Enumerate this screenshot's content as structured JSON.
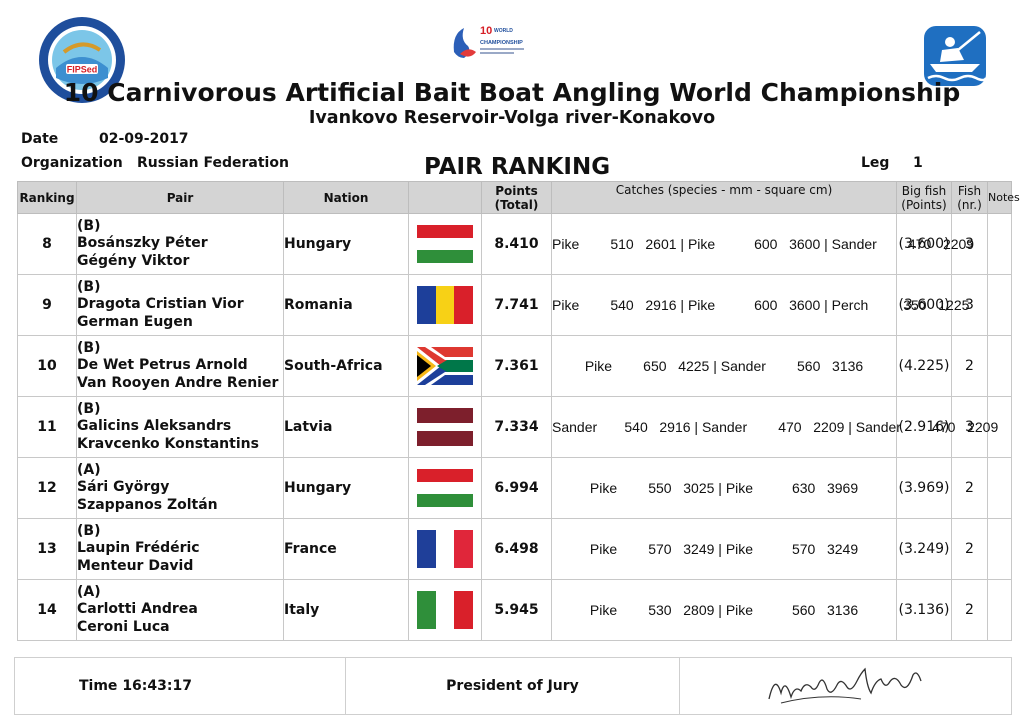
{
  "header": {
    "title": "10 Carnivorous Artificial Bait Boat Angling World Championship",
    "subtitle": "Ivankovo Reservoir-Volga river-Konakovo",
    "logo_left_text": "FIPSed",
    "logo_mid_text": [
      "10",
      "WORLD",
      "CHAMPIONSHIP"
    ]
  },
  "meta": {
    "date_label": "Date",
    "date_value": "02-09-2017",
    "org_label": "Organization",
    "org_value": "Russian Federation",
    "ranking_title": "PAIR RANKING",
    "leg_label": "Leg",
    "leg_value": "1"
  },
  "columns": {
    "ranking": "Ranking",
    "pair": "Pair",
    "nation": "Nation",
    "points_1": "Points",
    "points_2": "(Total)",
    "catches": "Catches (species - mm - square cm)",
    "bigfish_1": "Big fish",
    "bigfish_2": "(Points)",
    "fish_1": "Fish",
    "fish_2": "(nr.)",
    "notes": "Notes"
  },
  "rows": [
    {
      "rank": "8",
      "sector": "(B)",
      "angler1": "Bosánszky Péter",
      "angler2": "Gégény Viktor",
      "nation": "Hungary",
      "flag": "hungary",
      "points": "8.410",
      "catches": "Pike        510   2601 | Pike          600   3600 | Sander        470   2209",
      "bigfish": "(3.600)",
      "fish": "3",
      "notes": ""
    },
    {
      "rank": "9",
      "sector": "(B)",
      "angler1": "Dragota Cristian Vior",
      "angler2": "German Eugen",
      "nation": "Romania",
      "flag": "romania",
      "points": "7.741",
      "catches": "Pike        540   2916 | Pike          600   3600 | Perch         350   1225",
      "bigfish": "(3.600)",
      "fish": "3",
      "notes": ""
    },
    {
      "rank": "10",
      "sector": "(B)",
      "angler1": "De Wet Petrus Arnold",
      "angler2": "Van Rooyen Andre Renier",
      "nation": "South-Africa",
      "flag": "southafrica",
      "points": "7.361",
      "catches": "Pike        650   4225 | Sander        560   3136",
      "bigfish": "(4.225)",
      "fish": "2",
      "notes": ""
    },
    {
      "rank": "11",
      "sector": "(B)",
      "angler1": "Galicins Aleksandrs",
      "angler2": "Kravcenko Konstantins",
      "nation": "Latvia",
      "flag": "latvia",
      "points": "7.334",
      "catches": "Sander       540   2916 | Sander        470   2209 | Sander        470   2209",
      "bigfish": "(2.916)",
      "fish": "3",
      "notes": ""
    },
    {
      "rank": "12",
      "sector": "(A)",
      "angler1": "Sári György",
      "angler2": "Szappanos Zoltán",
      "nation": "Hungary",
      "flag": "hungary",
      "points": "6.994",
      "catches": "Pike        550   3025 | Pike          630   3969",
      "bigfish": "(3.969)",
      "fish": "2",
      "notes": ""
    },
    {
      "rank": "13",
      "sector": "(B)",
      "angler1": "Laupin Frédéric",
      "angler2": "Menteur David",
      "nation": "France",
      "flag": "france",
      "points": "6.498",
      "catches": "Pike        570   3249 | Pike          570   3249",
      "bigfish": "(3.249)",
      "fish": "2",
      "notes": ""
    },
    {
      "rank": "14",
      "sector": "(A)",
      "angler1": "Carlotti Andrea",
      "angler2": "Ceroni Luca",
      "nation": "Italy",
      "flag": "italy",
      "points": "5.945",
      "catches": "Pike        530   2809 | Pike          560   3136",
      "bigfish": "(3.136)",
      "fish": "2",
      "notes": ""
    }
  ],
  "footer": {
    "time_label": "Time",
    "time_value": "16:43:17",
    "president_label": "President of Jury"
  }
}
